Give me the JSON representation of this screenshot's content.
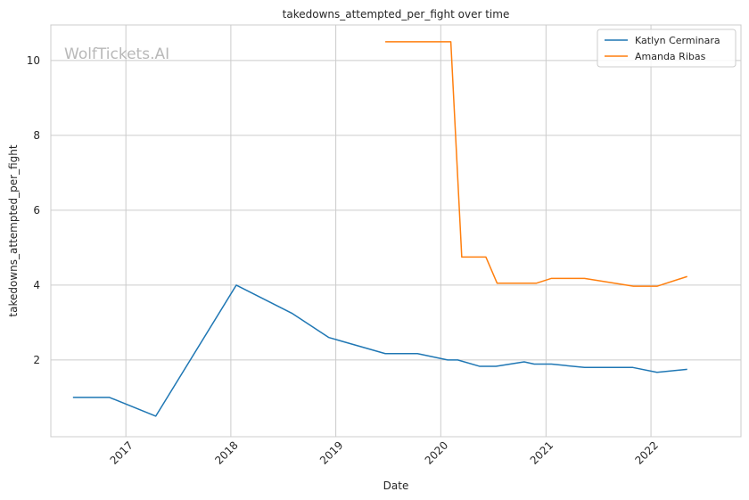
{
  "chart_data": {
    "type": "line",
    "title": "takedowns_attempted_per_fight over time",
    "xlabel": "Date",
    "ylabel": "takedowns_attempted_per_fight",
    "x_ticks": [
      "2017",
      "2018",
      "2019",
      "2020",
      "2021",
      "2022"
    ],
    "y_ticks": [
      "2",
      "4",
      "6",
      "8",
      "10"
    ],
    "xlim": [
      "2016-04-15",
      "2022-11-10"
    ],
    "ylim": [
      -0.05,
      10.95
    ],
    "grid": true,
    "legend_position": "top-right",
    "watermark": "WolfTickets.AI",
    "series": [
      {
        "name": "Katlyn Cerminara",
        "color": "#1f77b4",
        "points": [
          [
            "2016-07-01",
            1.0
          ],
          [
            "2016-11-05",
            1.0
          ],
          [
            "2017-04-15",
            0.5
          ],
          [
            "2018-01-20",
            4.0
          ],
          [
            "2018-08-01",
            3.25
          ],
          [
            "2018-12-08",
            2.6
          ],
          [
            "2019-06-22",
            2.17
          ],
          [
            "2019-10-12",
            2.17
          ],
          [
            "2020-01-25",
            2.0
          ],
          [
            "2020-02-29",
            2.0
          ],
          [
            "2020-05-16",
            1.83
          ],
          [
            "2020-07-11",
            1.83
          ],
          [
            "2020-10-17",
            1.95
          ],
          [
            "2020-11-21",
            1.89
          ],
          [
            "2021-01-20",
            1.89
          ],
          [
            "2021-05-15",
            1.8
          ],
          [
            "2021-10-30",
            1.8
          ],
          [
            "2022-01-22",
            1.67
          ],
          [
            "2022-05-07",
            1.75
          ]
        ]
      },
      {
        "name": "Amanda Ribas",
        "color": "#ff7f0e",
        "points": [
          [
            "2019-06-22",
            10.5
          ],
          [
            "2020-02-05",
            10.5
          ],
          [
            "2020-03-14",
            4.75
          ],
          [
            "2020-06-06",
            4.75
          ],
          [
            "2020-07-15",
            4.05
          ],
          [
            "2020-11-28",
            4.05
          ],
          [
            "2021-01-20",
            4.18
          ],
          [
            "2021-05-15",
            4.18
          ],
          [
            "2021-11-01",
            3.97
          ],
          [
            "2022-01-22",
            3.97
          ],
          [
            "2022-05-07",
            4.23
          ]
        ]
      }
    ]
  }
}
